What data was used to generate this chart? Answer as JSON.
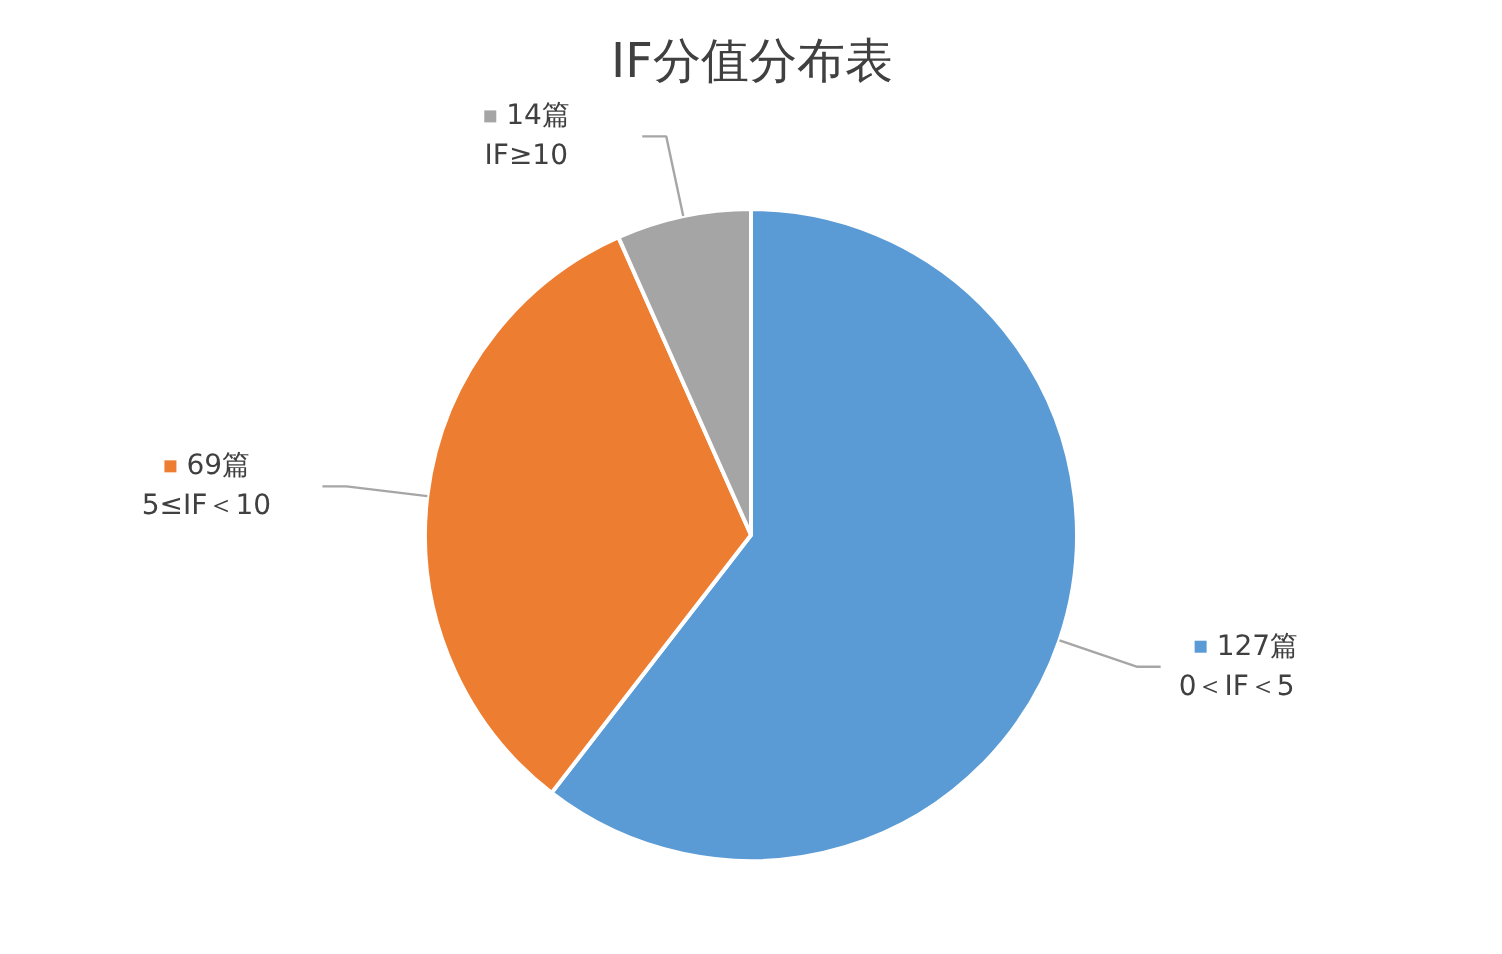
{
  "chart_data": {
    "type": "pie",
    "title": "IF分值分布表",
    "categories": [
      "0＜IF＜5",
      "5≤IF＜10",
      "IF≥10"
    ],
    "values": [
      127,
      69,
      14
    ],
    "colors": [
      "#5b9bd5",
      "#ed7d31",
      "#a5a5a5"
    ],
    "value_labels": [
      "127篇",
      "69篇",
      "14篇"
    ],
    "legend": "top left"
  }
}
